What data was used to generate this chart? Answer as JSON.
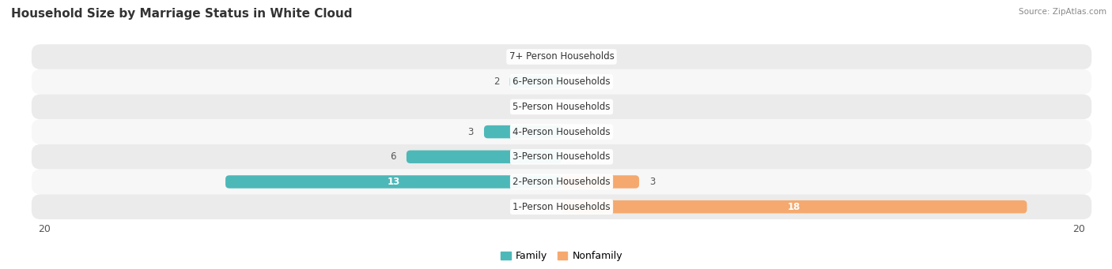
{
  "title": "Household Size by Marriage Status in White Cloud",
  "source": "Source: ZipAtlas.com",
  "categories": [
    "7+ Person Households",
    "6-Person Households",
    "5-Person Households",
    "4-Person Households",
    "3-Person Households",
    "2-Person Households",
    "1-Person Households"
  ],
  "family": [
    0,
    2,
    0,
    3,
    6,
    13,
    0
  ],
  "nonfamily": [
    0,
    0,
    0,
    0,
    0,
    3,
    18
  ],
  "family_color": "#4db8b8",
  "nonfamily_color": "#f5a96e",
  "xlim": 20,
  "bar_height": 0.52,
  "background_color": "#ffffff",
  "row_color_odd": "#ebebeb",
  "row_color_even": "#f7f7f7",
  "title_fontsize": 11,
  "label_fontsize": 8.5,
  "tick_fontsize": 9,
  "legend_fontsize": 9
}
